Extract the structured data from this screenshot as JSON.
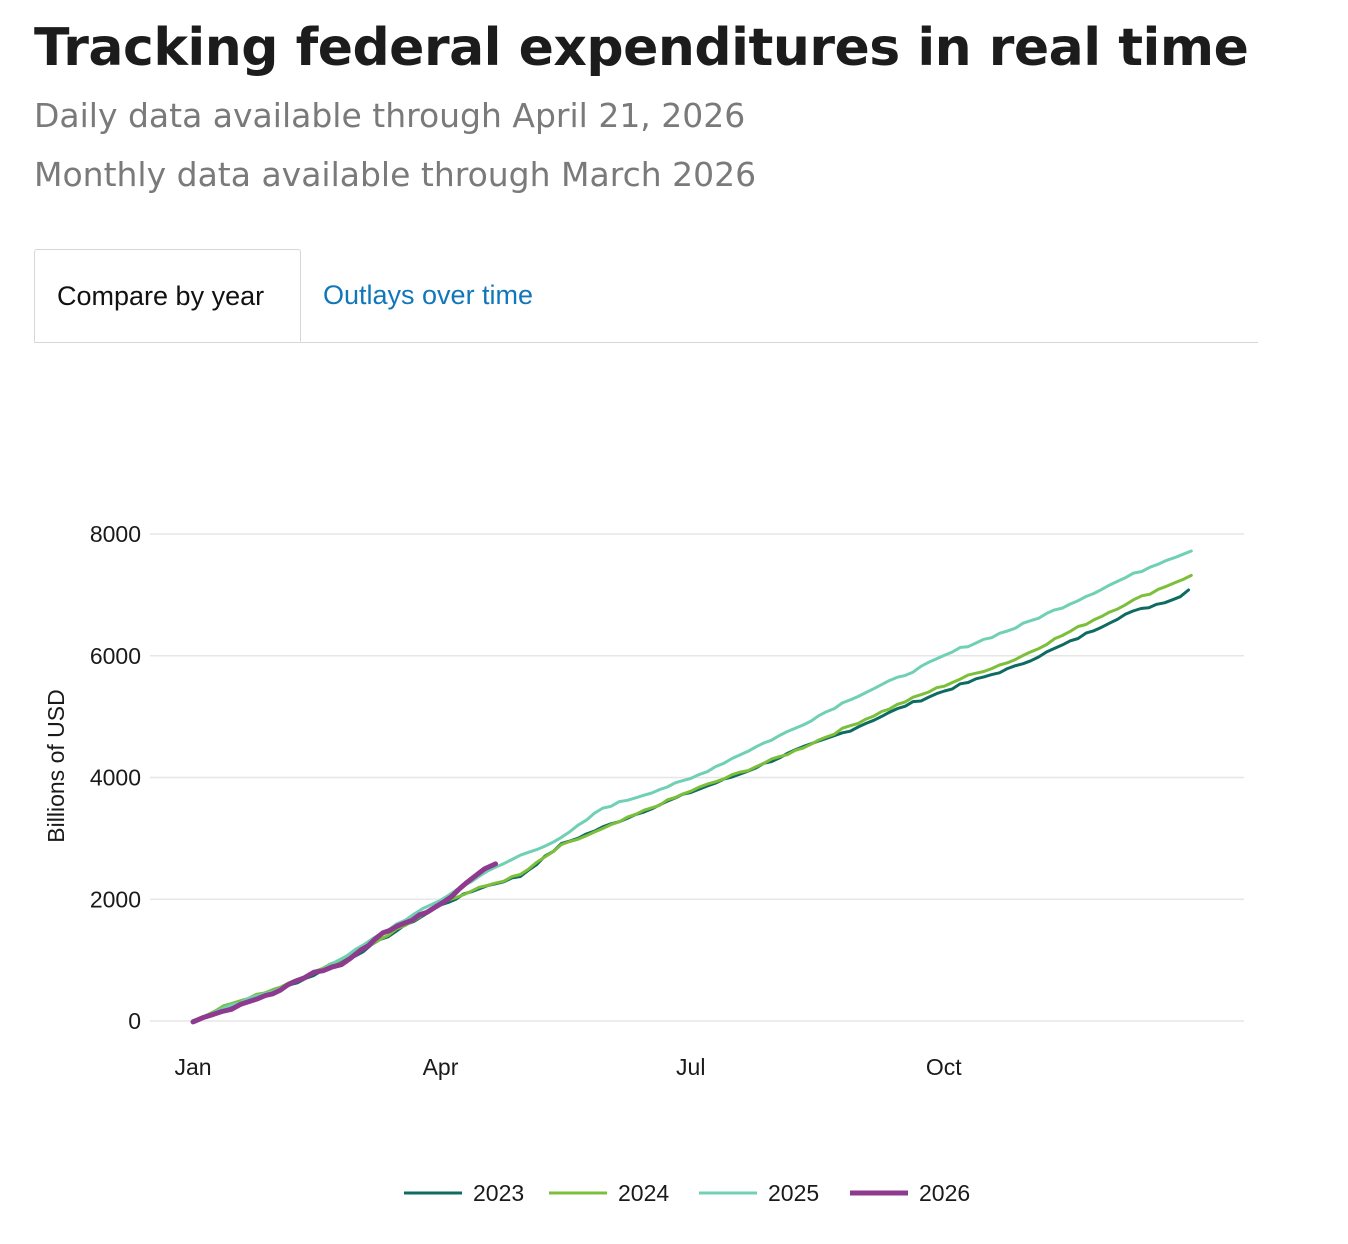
{
  "header": {
    "title": "Tracking federal expenditures in real time",
    "daily_note": "Daily data available through April 21, 2026",
    "monthly_note": "Monthly data available through March 2026"
  },
  "tabs": [
    {
      "label": "Compare by year",
      "active": true
    },
    {
      "label": "Outlays over time",
      "active": false
    }
  ],
  "chart_data": {
    "type": "line",
    "title": "",
    "xlabel": "",
    "ylabel": "Billions of USD",
    "x_unit": "day of year",
    "xlim": [
      1,
      365
    ],
    "ylim": [
      0,
      8000
    ],
    "y_ticks": [
      0,
      2000,
      4000,
      6000,
      8000
    ],
    "x_ticks": [
      {
        "label": "Jan",
        "day": 1
      },
      {
        "label": "Apr",
        "day": 91
      },
      {
        "label": "Jul",
        "day": 182
      },
      {
        "label": "Oct",
        "day": 274
      }
    ],
    "grid": true,
    "legend_position": "bottom-center",
    "series": [
      {
        "name": "2023",
        "color": "#0e6b62",
        "width": 3,
        "points": [
          [
            1,
            0
          ],
          [
            15,
            230
          ],
          [
            30,
            470
          ],
          [
            45,
            760
          ],
          [
            60,
            1080
          ],
          [
            75,
            1480
          ],
          [
            91,
            1900
          ],
          [
            105,
            2180
          ],
          [
            120,
            2380
          ],
          [
            135,
            2900
          ],
          [
            150,
            3180
          ],
          [
            165,
            3450
          ],
          [
            182,
            3760
          ],
          [
            200,
            4060
          ],
          [
            220,
            4440
          ],
          [
            240,
            4780
          ],
          [
            260,
            5180
          ],
          [
            280,
            5520
          ],
          [
            300,
            5820
          ],
          [
            320,
            6230
          ],
          [
            340,
            6680
          ],
          [
            360,
            6970
          ],
          [
            363,
            7080
          ]
        ]
      },
      {
        "name": "2024",
        "color": "#7cbf3a",
        "width": 3,
        "points": [
          [
            1,
            0
          ],
          [
            15,
            300
          ],
          [
            30,
            520
          ],
          [
            45,
            800
          ],
          [
            60,
            1120
          ],
          [
            75,
            1500
          ],
          [
            91,
            1930
          ],
          [
            105,
            2180
          ],
          [
            120,
            2400
          ],
          [
            135,
            2880
          ],
          [
            150,
            3150
          ],
          [
            165,
            3450
          ],
          [
            182,
            3780
          ],
          [
            200,
            4080
          ],
          [
            220,
            4440
          ],
          [
            240,
            4850
          ],
          [
            260,
            5250
          ],
          [
            280,
            5620
          ],
          [
            300,
            5940
          ],
          [
            320,
            6400
          ],
          [
            340,
            6850
          ],
          [
            355,
            7150
          ],
          [
            364,
            7320
          ]
        ]
      },
      {
        "name": "2025",
        "color": "#6fd0b4",
        "width": 3,
        "points": [
          [
            1,
            0
          ],
          [
            15,
            250
          ],
          [
            30,
            500
          ],
          [
            45,
            780
          ],
          [
            60,
            1160
          ],
          [
            75,
            1590
          ],
          [
            91,
            1990
          ],
          [
            105,
            2380
          ],
          [
            120,
            2720
          ],
          [
            135,
            3000
          ],
          [
            150,
            3500
          ],
          [
            165,
            3720
          ],
          [
            182,
            3980
          ],
          [
            200,
            4380
          ],
          [
            220,
            4810
          ],
          [
            240,
            5290
          ],
          [
            260,
            5690
          ],
          [
            280,
            6120
          ],
          [
            300,
            6460
          ],
          [
            320,
            6860
          ],
          [
            340,
            7280
          ],
          [
            355,
            7580
          ],
          [
            364,
            7720
          ]
        ]
      },
      {
        "name": "2026",
        "color": "#8e3a8e",
        "width": 5,
        "points": [
          [
            1,
            0
          ],
          [
            8,
            120
          ],
          [
            15,
            200
          ],
          [
            22,
            330
          ],
          [
            30,
            440
          ],
          [
            38,
            650
          ],
          [
            45,
            790
          ],
          [
            55,
            930
          ],
          [
            62,
            1150
          ],
          [
            70,
            1450
          ],
          [
            78,
            1600
          ],
          [
            86,
            1800
          ],
          [
            92,
            1940
          ],
          [
            98,
            2180
          ],
          [
            103,
            2380
          ],
          [
            107,
            2500
          ],
          [
            111,
            2580
          ]
        ]
      }
    ]
  }
}
